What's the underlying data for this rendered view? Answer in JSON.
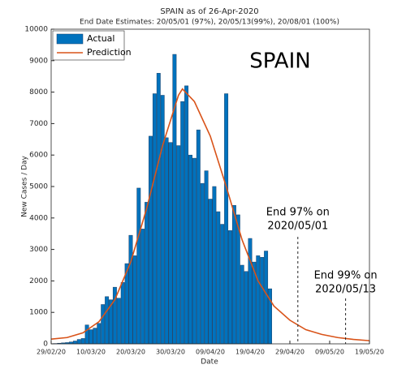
{
  "chart_data": {
    "type": "bar",
    "title": "SPAIN as of 26-Apr-2020",
    "subtitle": "End Date Estimates: 20/05/01 (97%), 20/05/13(99%), 20/08/01 (100%)",
    "watermark": "SPAIN",
    "xlabel": "Date",
    "ylabel": "New Cases / Day",
    "xlim": [
      "29/02/20",
      "19/05/20"
    ],
    "xticks": [
      "29/02/20",
      "10/03/20",
      "20/03/20",
      "30/03/20",
      "09/04/20",
      "19/04/20",
      "29/04/20",
      "09/05/20",
      "19/05/20"
    ],
    "ylim": [
      0,
      10000
    ],
    "yticks": [
      0,
      1000,
      2000,
      3000,
      4000,
      5000,
      6000,
      7000,
      8000,
      9000,
      10000
    ],
    "grid": false,
    "legend": "upper-left",
    "series": [
      {
        "name": "Actual",
        "type": "bar",
        "color": "#0072bd",
        "x": [
          "01/03/20",
          "02/03/20",
          "03/03/20",
          "04/03/20",
          "05/03/20",
          "06/03/20",
          "07/03/20",
          "08/03/20",
          "09/03/20",
          "10/03/20",
          "11/03/20",
          "12/03/20",
          "13/03/20",
          "14/03/20",
          "15/03/20",
          "16/03/20",
          "17/03/20",
          "18/03/20",
          "19/03/20",
          "20/03/20",
          "21/03/20",
          "22/03/20",
          "23/03/20",
          "24/03/20",
          "25/03/20",
          "26/03/20",
          "27/03/20",
          "28/03/20",
          "29/03/20",
          "30/03/20",
          "31/03/20",
          "01/04/20",
          "02/04/20",
          "03/04/20",
          "04/04/20",
          "05/04/20",
          "06/04/20",
          "07/04/20",
          "08/04/20",
          "09/04/20",
          "10/04/20",
          "11/04/20",
          "12/04/20",
          "13/04/20",
          "14/04/20",
          "15/04/20",
          "16/04/20",
          "17/04/20",
          "18/04/20",
          "19/04/20",
          "20/04/20",
          "21/04/20",
          "22/04/20",
          "23/04/20",
          "24/04/20"
        ],
        "values": [
          10,
          20,
          30,
          40,
          60,
          90,
          140,
          170,
          600,
          450,
          500,
          650,
          1250,
          1500,
          1400,
          1800,
          1450,
          1950,
          2550,
          3450,
          2800,
          4950,
          3650,
          4500,
          6600,
          7950,
          8600,
          7900,
          6550,
          6400,
          9200,
          6300,
          7700,
          8200,
          6000,
          5900,
          6800,
          5100,
          5500,
          4600,
          5000,
          4200,
          3800,
          7950,
          3600,
          4400,
          4100,
          2500,
          2300,
          3350,
          2600,
          2800,
          2750,
          2950,
          1750
        ]
      },
      {
        "name": "Prediction",
        "type": "line",
        "color": "#d95319",
        "x": [
          "29/02/20",
          "04/03/20",
          "08/03/20",
          "12/03/20",
          "16/03/20",
          "20/03/20",
          "24/03/20",
          "28/03/20",
          "01/04/20",
          "02/04/20",
          "05/04/20",
          "09/04/20",
          "13/04/20",
          "17/04/20",
          "21/04/20",
          "25/04/20",
          "29/04/20",
          "03/05/20",
          "07/05/20",
          "11/05/20",
          "15/05/20",
          "19/05/20"
        ],
        "values": [
          150,
          200,
          350,
          700,
          1400,
          2600,
          4300,
          6300,
          7900,
          8100,
          7700,
          6600,
          5000,
          3300,
          2000,
          1200,
          750,
          450,
          300,
          200,
          140,
          100
        ]
      }
    ],
    "annotations": [
      {
        "lines": [
          "End 97% on",
          "2020/05/01"
        ],
        "x": "01/05/20"
      },
      {
        "lines": [
          "End 99% on",
          "2020/05/13"
        ],
        "x": "13/05/20"
      }
    ]
  }
}
